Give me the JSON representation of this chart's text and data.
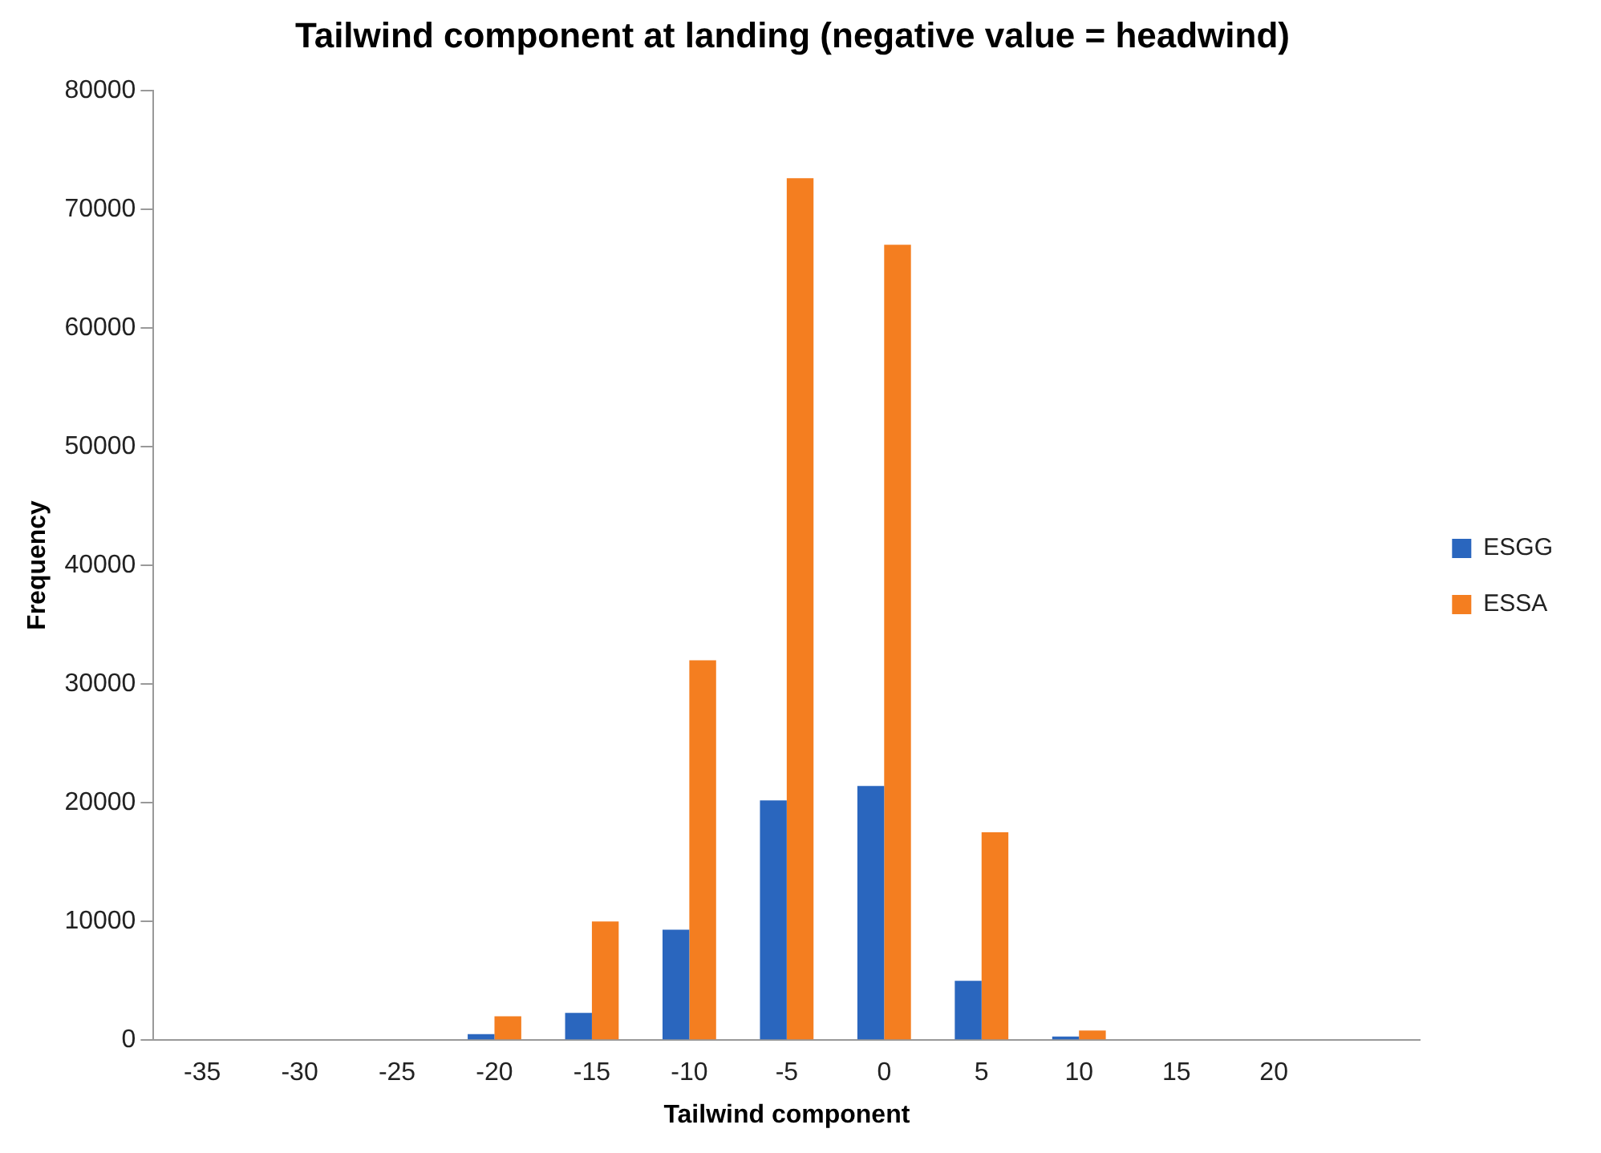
{
  "chart_data": {
    "type": "bar",
    "title": "Tailwind component at landing (negative value = headwind)",
    "xlabel": "Tailwind component",
    "ylabel": "Frequency",
    "categories": [
      "-35",
      "-30",
      "-25",
      "-20",
      "-15",
      "-10",
      "-5",
      "0",
      "5",
      "10",
      "15",
      "20",
      null
    ],
    "series": [
      {
        "name": "ESGG",
        "color": "#2a66be",
        "values": [
          0,
          0,
          0,
          500,
          2300,
          9300,
          20200,
          21400,
          5000,
          300,
          0,
          0,
          0
        ]
      },
      {
        "name": "ESSA",
        "color": "#f47e20",
        "values": [
          0,
          0,
          0,
          2000,
          10000,
          32000,
          72600,
          67000,
          17500,
          800,
          0,
          0,
          0
        ]
      }
    ],
    "ylim": [
      0,
      80000
    ],
    "yticks": [
      0,
      10000,
      20000,
      30000,
      40000,
      50000,
      60000,
      70000,
      80000
    ],
    "grid": false,
    "legend": "right"
  }
}
